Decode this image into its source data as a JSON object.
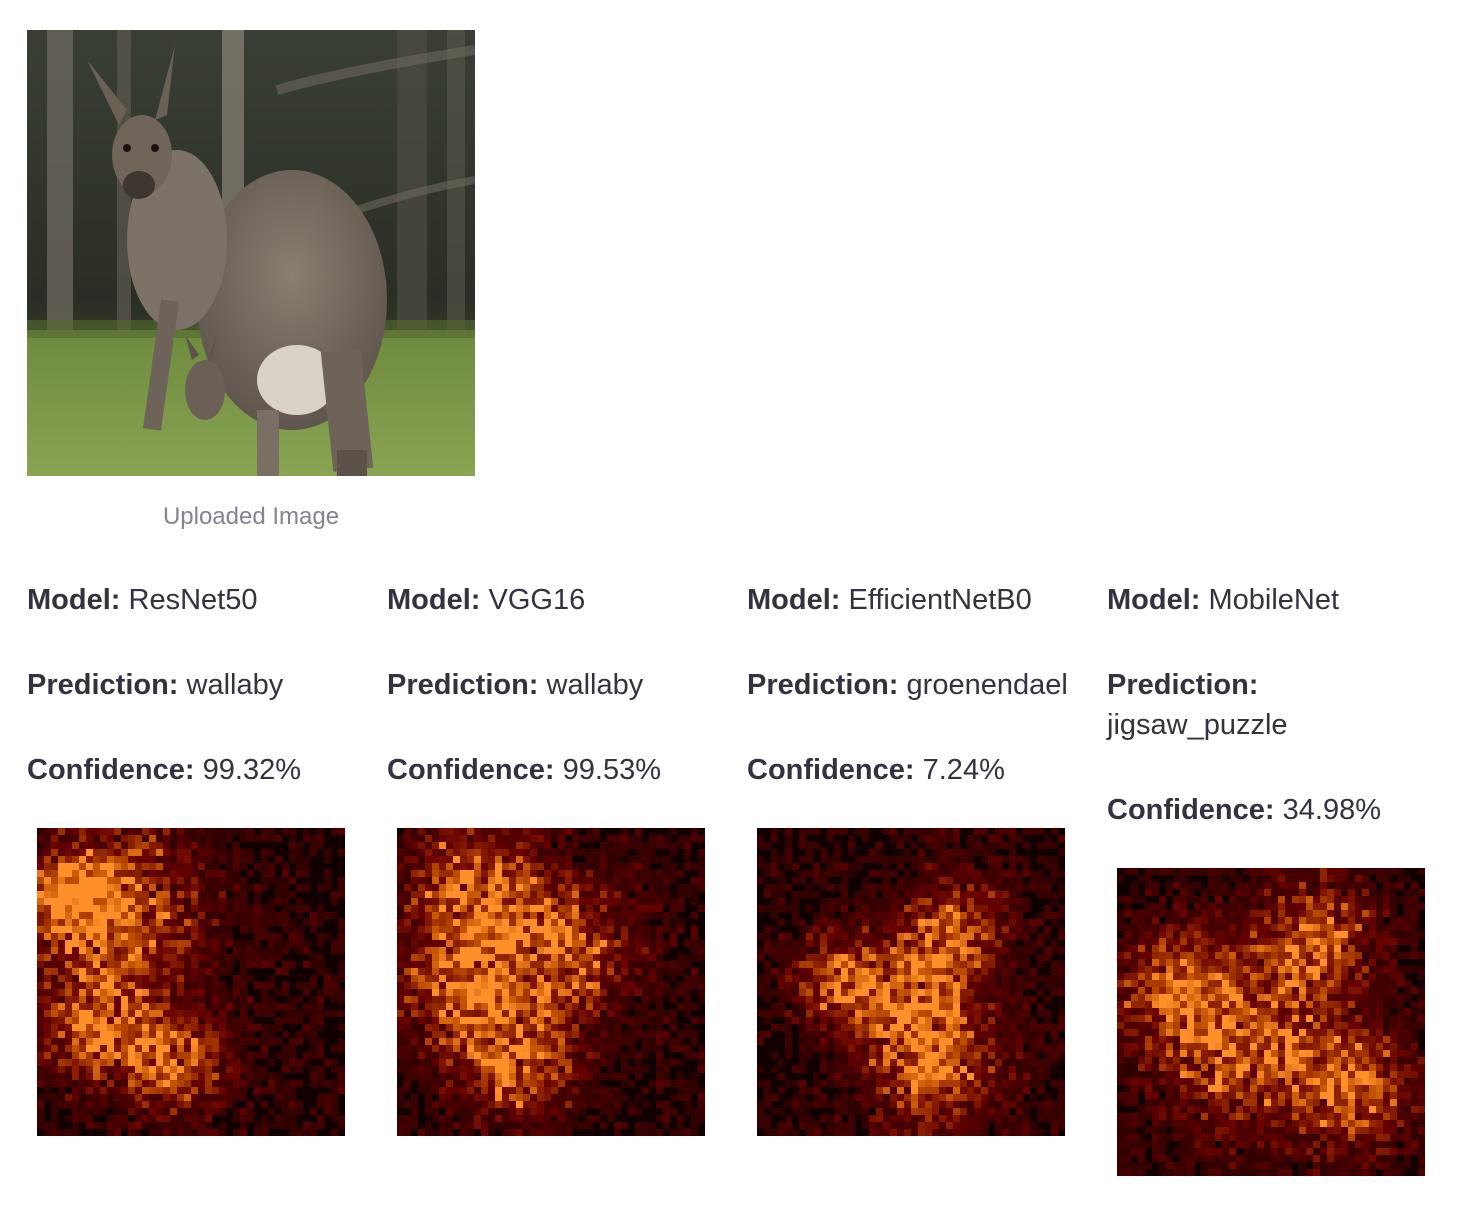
{
  "uploaded_image": {
    "caption": "Uploaded Image"
  },
  "labels": {
    "model": "Model:",
    "prediction": "Prediction:",
    "confidence": "Confidence:"
  },
  "results": [
    {
      "model": "ResNet50",
      "prediction": "wallaby",
      "confidence": "99.32%"
    },
    {
      "model": "VGG16",
      "prediction": "wallaby",
      "confidence": "99.53%"
    },
    {
      "model": "EfficientNetB0",
      "prediction": "groenendael",
      "confidence": "7.24%"
    },
    {
      "model": "MobileNet",
      "prediction": "jigsaw_puzzle",
      "confidence": "34.98%"
    }
  ],
  "colors": {
    "text": "#31333f",
    "caption": "#808495",
    "heatmap_bg": "#120000",
    "heatmap_hot": "#ff7a1a"
  }
}
